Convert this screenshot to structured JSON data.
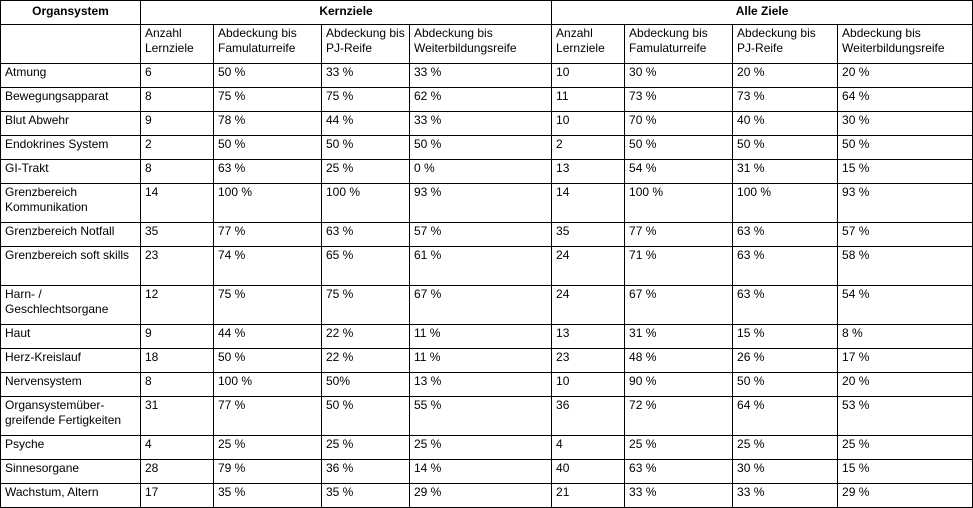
{
  "table": {
    "organ_header": "Organsystem",
    "group_headers": [
      "Kernziele",
      "Alle Ziele"
    ],
    "sub_headers": [
      "Anzahl Lernziele",
      "Abdeckung bis Famulaturreife",
      "Abdeckung bis PJ-Reife",
      "Abdeckung bis Weiterbildungsreife",
      "Anzahl Lernziele",
      "Abdeckung bis Famulaturreife",
      "Abdeckung bis PJ-Reife",
      "Abdeckung bis Weiterbildungsreife"
    ],
    "rows": [
      {
        "organ": "Atmung",
        "cells": [
          "6",
          "50 %",
          "33 %",
          "33 %",
          "10",
          "30 %",
          "20 %",
          "20 %"
        ]
      },
      {
        "organ": "Bewegungsapparat",
        "cells": [
          "8",
          "75 %",
          "75 %",
          "62 %",
          "11",
          "73 %",
          "73 %",
          "64 %"
        ]
      },
      {
        "organ": "Blut Abwehr",
        "cells": [
          "9",
          "78 %",
          "44 %",
          "33 %",
          "10",
          "70 %",
          "40 %",
          "30 %"
        ]
      },
      {
        "organ": "Endokrines System",
        "cells": [
          "2",
          "50 %",
          "50 %",
          "50 %",
          "2",
          "50 %",
          "50 %",
          "50 %"
        ]
      },
      {
        "organ": "GI-Trakt",
        "cells": [
          "8",
          "63 %",
          "25 %",
          "0 %",
          "13",
          "54 %",
          "31 %",
          "15 %"
        ]
      },
      {
        "organ": "Grenzbereich Kommunikation",
        "cells": [
          "14",
          "100 %",
          "100 %",
          "93 %",
          "14",
          "100 %",
          "100 %",
          "93 %"
        ]
      },
      {
        "organ": "Grenzbereich Notfall",
        "cells": [
          "35",
          "77 %",
          "63 %",
          "57 %",
          "35",
          "77 %",
          "63 %",
          "57 %"
        ]
      },
      {
        "organ": "Grenzbereich soft skills",
        "cells": [
          "23",
          "74 %",
          "65 %",
          "61 %",
          "24",
          "71 %",
          "63 %",
          "58 %"
        ]
      },
      {
        "organ": "Harn- / Geschlechtsorgane",
        "cells": [
          "12",
          "75 %",
          "75 %",
          "67 %",
          "24",
          "67 %",
          "63 %",
          "54 %"
        ]
      },
      {
        "organ": "Haut",
        "cells": [
          "9",
          "44 %",
          "22 %",
          "11 %",
          "13",
          "31 %",
          "15 %",
          "8 %"
        ]
      },
      {
        "organ": "Herz-Kreislauf",
        "cells": [
          "18",
          "50 %",
          "22 %",
          "11 %",
          "23",
          "48 %",
          "26 %",
          "17 %"
        ]
      },
      {
        "organ": "Nervensystem",
        "cells": [
          "8",
          "100 %",
          "50%",
          "13 %",
          "10",
          "90 %",
          "50 %",
          "20 %"
        ]
      },
      {
        "organ": "Organsystemüber-greifende Fertigkeiten",
        "cells": [
          "31",
          "77 %",
          "50 %",
          "55 %",
          "36",
          "72 %",
          "64 %",
          "53 %"
        ]
      },
      {
        "organ": "Psyche",
        "cells": [
          "4",
          "25 %",
          "25 %",
          "25 %",
          "4",
          "25 %",
          "25 %",
          "25 %"
        ]
      },
      {
        "organ": "Sinnesorgane",
        "cells": [
          "28",
          "79 %",
          "36 %",
          "14 %",
          "40",
          "63 %",
          "30 %",
          "15 %"
        ]
      },
      {
        "organ": "Wachstum, Altern",
        "cells": [
          "17",
          "35 %",
          "35 %",
          "29 %",
          "21",
          "33 %",
          "33 %",
          "29 %"
        ]
      }
    ]
  }
}
